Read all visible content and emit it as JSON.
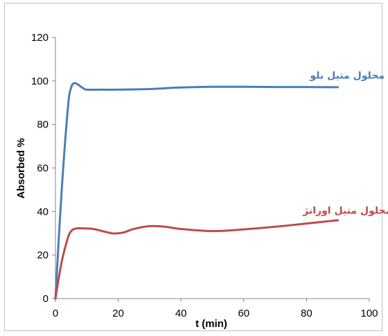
{
  "chart_data": {
    "type": "line",
    "title": "",
    "xlabel": "t (min)",
    "ylabel": "Absorbed %",
    "xlim": [
      0,
      100
    ],
    "ylim": [
      0,
      120
    ],
    "x_ticks": [
      0,
      20,
      40,
      60,
      80,
      100
    ],
    "y_ticks": [
      0,
      20,
      40,
      60,
      80,
      100,
      120
    ],
    "grid": false,
    "legend": "none",
    "series": [
      {
        "name": "محلول متیل بلو",
        "color": "#4a7ebb",
        "label_anchor": [
          93,
          101
        ],
        "x": [
          0,
          2,
          4,
          5,
          6,
          7,
          8,
          9,
          10,
          15,
          20,
          30,
          40,
          50,
          60,
          70,
          80,
          90
        ],
        "y": [
          0,
          50,
          88,
          97,
          99,
          98.5,
          97.5,
          96.5,
          96,
          96,
          96,
          96.3,
          97,
          97.3,
          97.3,
          97.2,
          97.2,
          97.1
        ]
      },
      {
        "name": "محلول متیل اورانژ",
        "color": "#be4b48",
        "label_anchor": [
          93,
          39
        ],
        "x": [
          0,
          2,
          4,
          5,
          6,
          7,
          8,
          10,
          12,
          15,
          18,
          20,
          22,
          25,
          30,
          35,
          40,
          50,
          60,
          70,
          80,
          90
        ],
        "y": [
          0,
          17,
          28,
          31,
          32,
          32.3,
          32.3,
          32.2,
          32,
          31,
          30,
          30,
          30.5,
          32,
          33.3,
          33,
          32,
          31,
          31.8,
          33,
          34.5,
          36
        ]
      }
    ]
  }
}
